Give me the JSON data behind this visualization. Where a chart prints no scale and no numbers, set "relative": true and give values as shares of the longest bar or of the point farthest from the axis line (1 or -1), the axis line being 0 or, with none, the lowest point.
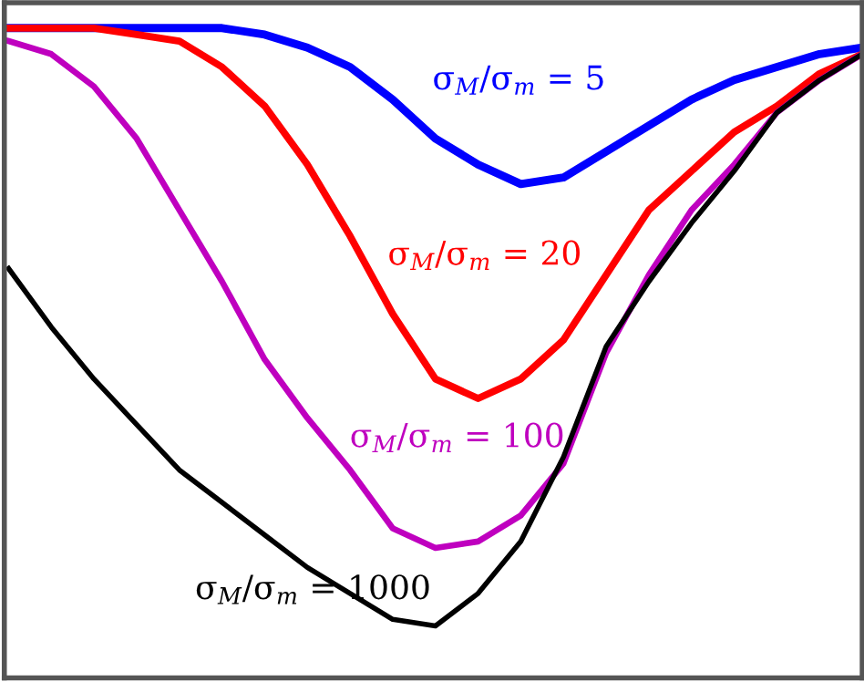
{
  "chart_data": {
    "type": "line",
    "relative": true,
    "marker": "none",
    "line_style": "solid",
    "categories": [
      null,
      null,
      null,
      null,
      null,
      null,
      null,
      null,
      null,
      null,
      null,
      null,
      null,
      null,
      null,
      null,
      null,
      null,
      null,
      null,
      null
    ],
    "series": [
      {
        "name": "σ$_{M}$/σ$_{m}$ = 5",
        "color": "#0000ff",
        "values": [
          1.0,
          1.0,
          1.0,
          1.0,
          1.0,
          1.0,
          0.99,
          0.97,
          0.94,
          0.89,
          0.83,
          0.79,
          0.76,
          0.77,
          0.81,
          0.85,
          0.89,
          0.92,
          0.94,
          0.96,
          0.97
        ]
      },
      {
        "name": "σ$_{M}$/σ$_{m}$ = 20",
        "color": "#ff0000",
        "values": [
          1.0,
          1.0,
          1.0,
          0.99,
          0.98,
          0.94,
          0.88,
          0.79,
          0.68,
          0.56,
          0.46,
          0.43,
          0.46,
          0.52,
          0.62,
          0.72,
          0.78,
          0.84,
          0.88,
          0.93,
          0.96
        ]
      },
      {
        "name": "σ$_{M}$/σ$_{m}$ = 100",
        "color": "#bf00bf",
        "values": [
          0.98,
          0.96,
          0.91,
          0.83,
          0.72,
          0.61,
          0.49,
          0.4,
          0.32,
          0.23,
          0.2,
          0.21,
          0.25,
          0.33,
          0.5,
          0.62,
          0.72,
          0.79,
          0.87,
          0.92,
          0.96
        ]
      },
      {
        "name": "σ$_{M}$/σ$_{m}$ = 1000",
        "color": "#000000",
        "values": [
          0.63,
          0.54,
          0.46,
          0.39,
          0.32,
          0.27,
          0.22,
          0.17,
          0.13,
          0.09,
          0.08,
          0.13,
          0.21,
          0.34,
          0.51,
          0.61,
          0.7,
          0.78,
          0.87,
          0.92,
          0.96
        ]
      }
    ]
  }
}
